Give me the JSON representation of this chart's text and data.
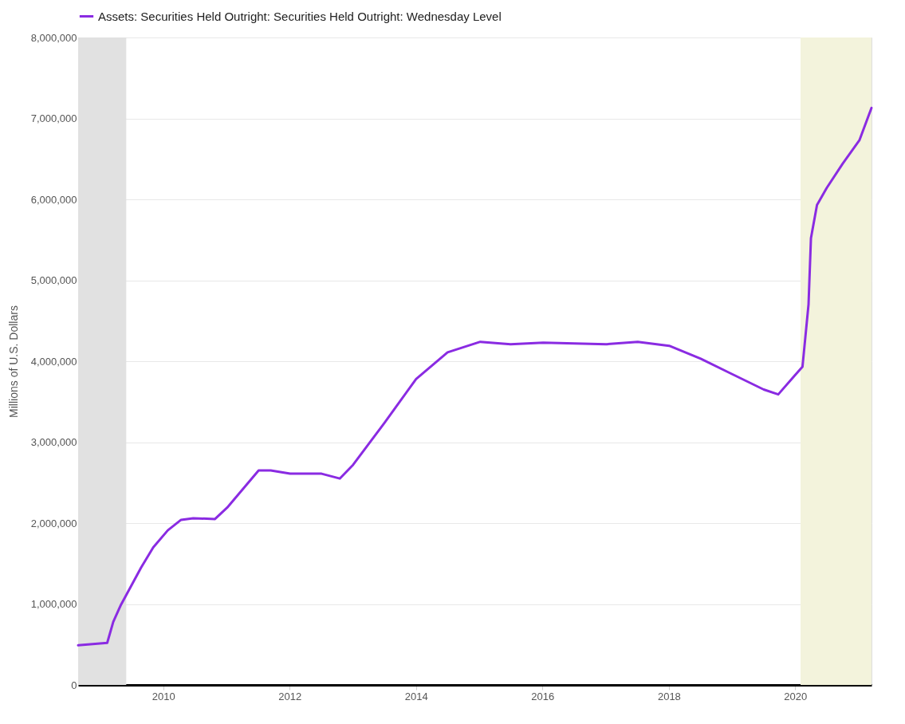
{
  "chart_data": {
    "type": "line",
    "ylabel": "Millions of U.S. Dollars",
    "legend": "top",
    "grid": "y",
    "marker": "none",
    "line_style": "solid",
    "x": [
      "2008-08-27",
      "2009-02-11",
      "2009-03-18",
      "2009-04-29",
      "2009-08-26",
      "2009-11-04",
      "2010-01-27",
      "2010-04-14",
      "2010-06-23",
      "2010-10-27",
      "2011-01-05",
      "2011-07-06",
      "2011-09-14",
      "2012-01-04",
      "2012-07-04",
      "2012-10-17",
      "2013-01-02",
      "2013-07-03",
      "2014-01-01",
      "2014-07-02",
      "2015-01-07",
      "2015-07-01",
      "2016-01-06",
      "2017-01-04",
      "2017-07-05",
      "2018-01-03",
      "2018-07-04",
      "2019-01-02",
      "2019-07-03",
      "2019-09-25",
      "2020-01-01",
      "2020-02-12",
      "2020-03-18",
      "2020-04-01",
      "2020-05-06",
      "2020-07-01",
      "2020-10-01",
      "2021-01-06",
      "2021-03-17"
    ],
    "series": [
      {
        "name": "Assets: Securities Held Outright: Securities Held Outright: Wednesday Level",
        "color": "#8a2be2",
        "values": [
          490000,
          520000,
          780000,
          980000,
          1450000,
          1700000,
          1910000,
          2040000,
          2060000,
          2050000,
          2190000,
          2650000,
          2650000,
          2610000,
          2610000,
          2550000,
          2720000,
          3240000,
          3780000,
          4110000,
          4240000,
          4210000,
          4230000,
          4210000,
          4240000,
          4190000,
          4030000,
          3840000,
          3650000,
          3590000,
          3830000,
          3930000,
          4700000,
          5520000,
          5930000,
          6140000,
          6440000,
          6730000,
          7130000
        ]
      }
    ],
    "xlim": [
      "2008-08-27",
      "2021-03-17"
    ],
    "xticks": [
      {
        "value": "2010-01-01",
        "label": "2010"
      },
      {
        "value": "2012-01-01",
        "label": "2012"
      },
      {
        "value": "2014-01-01",
        "label": "2014"
      },
      {
        "value": "2016-01-01",
        "label": "2016"
      },
      {
        "value": "2018-01-01",
        "label": "2018"
      },
      {
        "value": "2020-01-01",
        "label": "2020"
      }
    ],
    "ylim": [
      0,
      8000000
    ],
    "yticks": [
      {
        "value": 0,
        "label": "0"
      },
      {
        "value": 1000000,
        "label": "1,000,000"
      },
      {
        "value": 2000000,
        "label": "2,000,000"
      },
      {
        "value": 3000000,
        "label": "3,000,000"
      },
      {
        "value": 4000000,
        "label": "4,000,000"
      },
      {
        "value": 5000000,
        "label": "5,000,000"
      },
      {
        "value": 6000000,
        "label": "6,000,000"
      },
      {
        "value": 7000000,
        "label": "7,000,000"
      },
      {
        "value": 8000000,
        "label": "8,000,000"
      }
    ],
    "bands": [
      {
        "axis": "x",
        "from": "2008-08-27",
        "to": "2009-06-01",
        "color": "#e1e1e1"
      },
      {
        "axis": "x",
        "from": "2020-02-01",
        "to": "2021-03-17",
        "color": "#f3f3dc"
      }
    ]
  }
}
